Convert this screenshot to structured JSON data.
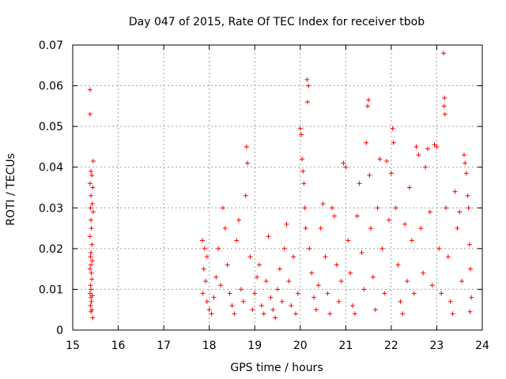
{
  "chart_data": {
    "type": "scatter",
    "title": "Day 047 of 2015, Rate Of TEC Index for receiver tbob",
    "xlabel": "GPS time / hours",
    "ylabel": "ROTI / TECUs",
    "xlim": [
      15,
      24
    ],
    "ylim": [
      0,
      0.07
    ],
    "x_ticks": [
      15,
      16,
      17,
      18,
      19,
      20,
      21,
      22,
      23,
      24
    ],
    "x_tick_labels": [
      "15",
      "16",
      "17",
      "18",
      "19",
      "20",
      "21",
      "22",
      "23",
      "24"
    ],
    "y_ticks": [
      0,
      0.01,
      0.02,
      0.03,
      0.04,
      0.05,
      0.06,
      0.07
    ],
    "y_tick_labels": [
      "0",
      "0.01",
      "0.02",
      "0.03",
      "0.04",
      "0.05",
      "0.06",
      "0.07"
    ],
    "grid": true,
    "marker": "+",
    "color": "#ff0000",
    "series": [
      {
        "name": "ROTI",
        "points": [
          [
            15.38,
            0.059
          ],
          [
            15.38,
            0.053
          ],
          [
            15.45,
            0.0415
          ],
          [
            15.4,
            0.039
          ],
          [
            15.42,
            0.038
          ],
          [
            15.38,
            0.036
          ],
          [
            15.44,
            0.035
          ],
          [
            15.4,
            0.033
          ],
          [
            15.43,
            0.031
          ],
          [
            15.39,
            0.03
          ],
          [
            15.45,
            0.029
          ],
          [
            15.4,
            0.027
          ],
          [
            15.41,
            0.025
          ],
          [
            15.38,
            0.023
          ],
          [
            15.42,
            0.021
          ],
          [
            15.4,
            0.019
          ],
          [
            15.39,
            0.018
          ],
          [
            15.43,
            0.017
          ],
          [
            15.4,
            0.016
          ],
          [
            15.38,
            0.015
          ],
          [
            15.41,
            0.014
          ],
          [
            15.42,
            0.0125
          ],
          [
            15.39,
            0.011
          ],
          [
            15.4,
            0.01
          ],
          [
            15.38,
            0.009
          ],
          [
            15.43,
            0.0085
          ],
          [
            15.4,
            0.008
          ],
          [
            15.41,
            0.007
          ],
          [
            15.39,
            0.006
          ],
          [
            15.42,
            0.005
          ],
          [
            15.4,
            0.0045
          ],
          [
            15.44,
            0.003
          ],
          [
            17.85,
            0.022
          ],
          [
            17.9,
            0.02
          ],
          [
            17.95,
            0.018
          ],
          [
            17.88,
            0.015
          ],
          [
            17.92,
            0.012
          ],
          [
            17.86,
            0.009
          ],
          [
            17.95,
            0.007
          ],
          [
            18.0,
            0.005
          ],
          [
            18.05,
            0.004
          ],
          [
            18.1,
            0.008
          ],
          [
            18.15,
            0.013
          ],
          [
            18.2,
            0.02
          ],
          [
            18.25,
            0.011
          ],
          [
            18.3,
            0.03
          ],
          [
            18.35,
            0.025
          ],
          [
            18.4,
            0.016
          ],
          [
            18.45,
            0.009
          ],
          [
            18.5,
            0.006
          ],
          [
            18.55,
            0.004
          ],
          [
            18.6,
            0.022
          ],
          [
            18.65,
            0.027
          ],
          [
            18.7,
            0.01
          ],
          [
            18.75,
            0.007
          ],
          [
            18.8,
            0.033
          ],
          [
            18.82,
            0.045
          ],
          [
            18.84,
            0.041
          ],
          [
            18.9,
            0.018
          ],
          [
            18.95,
            0.005
          ],
          [
            19.0,
            0.009
          ],
          [
            19.05,
            0.013
          ],
          [
            19.1,
            0.016
          ],
          [
            19.15,
            0.006
          ],
          [
            19.2,
            0.004
          ],
          [
            19.25,
            0.012
          ],
          [
            19.3,
            0.023
          ],
          [
            19.35,
            0.008
          ],
          [
            19.4,
            0.005
          ],
          [
            19.45,
            0.003
          ],
          [
            19.5,
            0.01
          ],
          [
            19.55,
            0.015
          ],
          [
            19.6,
            0.007
          ],
          [
            19.65,
            0.02
          ],
          [
            19.7,
            0.026
          ],
          [
            19.75,
            0.012
          ],
          [
            19.8,
            0.006
          ],
          [
            19.85,
            0.018
          ],
          [
            19.9,
            0.004
          ],
          [
            19.95,
            0.009
          ],
          [
            20.0,
            0.0495
          ],
          [
            20.02,
            0.048
          ],
          [
            20.04,
            0.042
          ],
          [
            20.06,
            0.039
          ],
          [
            20.08,
            0.036
          ],
          [
            20.1,
            0.03
          ],
          [
            20.12,
            0.025
          ],
          [
            20.15,
            0.0615
          ],
          [
            20.18,
            0.06
          ],
          [
            20.16,
            0.056
          ],
          [
            20.2,
            0.02
          ],
          [
            20.25,
            0.014
          ],
          [
            20.3,
            0.008
          ],
          [
            20.35,
            0.005
          ],
          [
            20.4,
            0.011
          ],
          [
            20.45,
            0.025
          ],
          [
            20.5,
            0.031
          ],
          [
            20.55,
            0.018
          ],
          [
            20.6,
            0.009
          ],
          [
            20.65,
            0.004
          ],
          [
            20.7,
            0.03
          ],
          [
            20.75,
            0.028
          ],
          [
            20.8,
            0.016
          ],
          [
            20.85,
            0.007
          ],
          [
            20.9,
            0.012
          ],
          [
            20.95,
            0.041
          ],
          [
            21.0,
            0.04
          ],
          [
            21.05,
            0.022
          ],
          [
            21.1,
            0.014
          ],
          [
            21.15,
            0.006
          ],
          [
            21.2,
            0.004
          ],
          [
            21.25,
            0.028
          ],
          [
            21.3,
            0.036
          ],
          [
            21.35,
            0.019
          ],
          [
            21.4,
            0.01
          ],
          [
            21.45,
            0.046
          ],
          [
            21.48,
            0.055
          ],
          [
            21.5,
            0.0565
          ],
          [
            21.52,
            0.038
          ],
          [
            21.55,
            0.025
          ],
          [
            21.6,
            0.013
          ],
          [
            21.65,
            0.005
          ],
          [
            21.7,
            0.03
          ],
          [
            21.75,
            0.042
          ],
          [
            21.8,
            0.02
          ],
          [
            21.85,
            0.009
          ],
          [
            21.9,
            0.0415
          ],
          [
            21.95,
            0.027
          ],
          [
            22.0,
            0.0385
          ],
          [
            22.03,
            0.0495
          ],
          [
            22.05,
            0.046
          ],
          [
            22.1,
            0.03
          ],
          [
            22.15,
            0.016
          ],
          [
            22.2,
            0.007
          ],
          [
            22.25,
            0.004
          ],
          [
            22.3,
            0.026
          ],
          [
            22.35,
            0.012
          ],
          [
            22.4,
            0.035
          ],
          [
            22.45,
            0.022
          ],
          [
            22.5,
            0.009
          ],
          [
            22.55,
            0.045
          ],
          [
            22.6,
            0.043
          ],
          [
            22.65,
            0.025
          ],
          [
            22.7,
            0.014
          ],
          [
            22.75,
            0.04
          ],
          [
            22.8,
            0.0445
          ],
          [
            22.85,
            0.029
          ],
          [
            22.9,
            0.011
          ],
          [
            22.95,
            0.0455
          ],
          [
            23.0,
            0.045
          ],
          [
            23.05,
            0.02
          ],
          [
            23.1,
            0.009
          ],
          [
            23.15,
            0.068
          ],
          [
            23.17,
            0.057
          ],
          [
            23.16,
            0.055
          ],
          [
            23.18,
            0.053
          ],
          [
            23.2,
            0.03
          ],
          [
            23.25,
            0.018
          ],
          [
            23.3,
            0.007
          ],
          [
            23.35,
            0.004
          ],
          [
            23.4,
            0.034
          ],
          [
            23.45,
            0.025
          ],
          [
            23.5,
            0.029
          ],
          [
            23.55,
            0.012
          ],
          [
            23.6,
            0.043
          ],
          [
            23.62,
            0.041
          ],
          [
            23.65,
            0.0385
          ],
          [
            23.68,
            0.033
          ],
          [
            23.7,
            0.03
          ],
          [
            23.72,
            0.021
          ],
          [
            23.74,
            0.015
          ],
          [
            23.76,
            0.008
          ],
          [
            23.73,
            0.0045
          ]
        ]
      }
    ]
  }
}
